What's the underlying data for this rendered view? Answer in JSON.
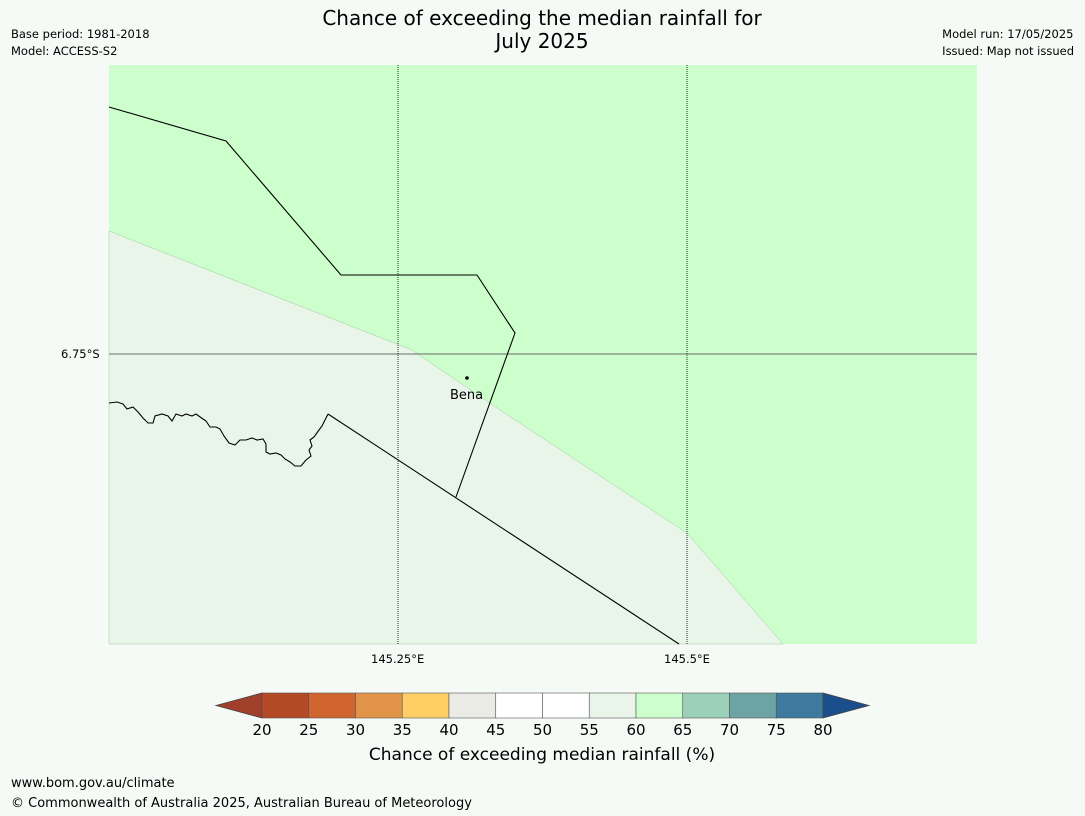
{
  "header": {
    "title_line1": "Chance of exceeding the median rainfall for",
    "title_line2": "July 2025",
    "base_period": "Base period: 1981-2018",
    "model": "Model: ACCESS-S2",
    "model_run": "Model run: 17/05/2025",
    "issued": "Issued: Map not issued"
  },
  "map": {
    "place_label": "Bena",
    "lat_label": "6.75°S",
    "lon_labels": [
      "145.25°E",
      "145.5°E"
    ],
    "colors": {
      "band_60_65": "#ccffcc",
      "band_55_60": "#eaf5ea"
    }
  },
  "colorbar": {
    "title": "Chance of exceeding median rainfall (%)",
    "ticks": [
      "20",
      "25",
      "30",
      "35",
      "40",
      "45",
      "50",
      "55",
      "60",
      "65",
      "70",
      "75",
      "80"
    ],
    "colors": [
      "#a0402a",
      "#b34a25",
      "#d06530",
      "#e29548",
      "#ffcf66",
      "#ebebe6",
      "#ffffff",
      "#ffffff",
      "#eaf5ea",
      "#ccffcc",
      "#9dd0b8",
      "#6da3a3",
      "#3e7a9e",
      "#1a4f8c"
    ]
  },
  "footer": {
    "url": "www.bom.gov.au/climate",
    "copyright": "© Commonwealth of Australia 2025, Australian Bureau of Meteorology"
  }
}
